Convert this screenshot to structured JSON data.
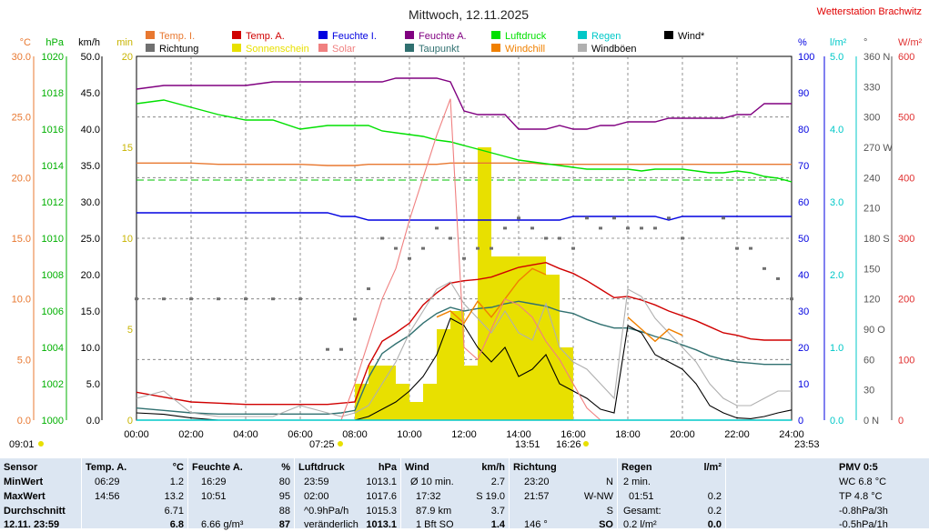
{
  "title": "Mittwoch, 12.11.2025",
  "station": "Wetterstation Brachwitz",
  "colors": {
    "temp_in": "#e87830",
    "temp_out": "#d00000",
    "hum_in": "#0000e0",
    "hum_out": "#800080",
    "pressure": "#00e000",
    "rain": "#00c8c8",
    "wind": "#000000",
    "direction": "#707070",
    "sunshine": "#e8e000",
    "solar": "#f08080",
    "dewpoint": "#307070",
    "windchill": "#f08000",
    "gusts": "#b0b0b0",
    "table_bg": "#dce6f2"
  },
  "legend": [
    {
      "label": "Temp. I.",
      "color": "#e87830"
    },
    {
      "label": "Temp. A.",
      "color": "#d00000"
    },
    {
      "label": "Feuchte I.",
      "color": "#0000e0"
    },
    {
      "label": "Feuchte A.",
      "color": "#800080"
    },
    {
      "label": "Luftdruck",
      "color": "#00e000"
    },
    {
      "label": "Regen",
      "color": "#00c8c8"
    },
    {
      "label": "Wind*",
      "color": "#000000"
    },
    {
      "label": "Richtung",
      "color": "#707070"
    },
    {
      "label": "Sonnenschein",
      "color": "#e8e000"
    },
    {
      "label": "Solar",
      "color": "#f08080"
    },
    {
      "label": "Taupunkt",
      "color": "#307070"
    },
    {
      "label": "Windchill",
      "color": "#f08000"
    },
    {
      "label": "Windböen",
      "color": "#b0b0b0"
    }
  ],
  "axes": {
    "temp": {
      "unit": "°C",
      "ticks": [
        "30.0",
        "25.0",
        "20.0",
        "15.0",
        "10.0",
        "5.0",
        "0.0"
      ],
      "color": "#e87830"
    },
    "pressure": {
      "unit": "hPa",
      "ticks": [
        "1020",
        "1018",
        "1016",
        "1014",
        "1012",
        "1010",
        "1008",
        "1006",
        "1004",
        "1002",
        "1000"
      ],
      "color": "#00b000"
    },
    "wind": {
      "unit": "km/h",
      "ticks": [
        "50.0",
        "45.0",
        "40.0",
        "35.0",
        "30.0",
        "25.0",
        "20.0",
        "15.0",
        "10.0",
        "5.0",
        "0.0"
      ],
      "color": "#000000"
    },
    "sun": {
      "unit": "min",
      "ticks": [
        "20",
        "15",
        "10",
        "5",
        "0"
      ],
      "color": "#c8b400"
    },
    "humidity": {
      "unit": "%",
      "ticks": [
        "100",
        "90",
        "80",
        "70",
        "60",
        "50",
        "40",
        "30",
        "20",
        "10",
        "0"
      ],
      "color": "#0000e0"
    },
    "rain": {
      "unit": "l/m²",
      "ticks": [
        "5.0",
        "4.0",
        "3.0",
        "2.0",
        "1.0",
        "0.0"
      ],
      "color": "#00c8c8"
    },
    "direction": {
      "unit": "°",
      "ticks": [
        "360 N",
        "330",
        "300",
        "270 W",
        "240",
        "210",
        "180 S",
        "150",
        "120",
        "90 O",
        "60",
        "30",
        "0 N"
      ],
      "color": "#555555"
    },
    "solar": {
      "unit": "W/m²",
      "ticks": [
        "600",
        "500",
        "400",
        "300",
        "200",
        "100",
        "0"
      ],
      "color": "#e03030"
    },
    "time": [
      "00:00",
      "02:00",
      "04:00",
      "06:00",
      "08:00",
      "10:00",
      "12:00",
      "14:00",
      "16:00",
      "18:00",
      "20:00",
      "22:00",
      "24:00"
    ]
  },
  "sun_times": {
    "sunrise_label": "07:25",
    "sunset_label": "16:26",
    "moonrise_label": "09:01",
    "moonset_label": "23:53",
    "solar_noon_label": "13:51"
  },
  "chart_data": {
    "type": "line",
    "x_unit": "hours",
    "x": [
      0,
      1,
      2,
      3,
      4,
      5,
      6,
      7,
      7.5,
      8,
      8.5,
      9,
      9.5,
      10,
      10.5,
      11,
      11.5,
      12,
      12.5,
      13,
      13.5,
      14,
      14.5,
      15,
      15.5,
      16,
      16.5,
      17,
      17.5,
      18,
      18.5,
      19,
      19.5,
      20,
      20.5,
      21,
      21.5,
      22,
      22.5,
      23,
      23.5,
      24
    ],
    "series": [
      {
        "name": "Temp. A.",
        "axis": "temp",
        "values": [
          2.3,
          1.9,
          1.5,
          1.4,
          1.3,
          1.3,
          1.3,
          1.3,
          1.4,
          1.5,
          4.5,
          6.5,
          7.2,
          8.0,
          9.5,
          10.5,
          11.3,
          11.5,
          11.6,
          11.8,
          12.2,
          12.6,
          12.8,
          13.0,
          12.5,
          12.1,
          11.5,
          10.8,
          10.1,
          10.2,
          9.9,
          9.5,
          9.0,
          8.6,
          8.2,
          7.7,
          7.2,
          7.0,
          6.7,
          6.6,
          6.6,
          6.6
        ]
      },
      {
        "name": "Taupunkt",
        "axis": "temp",
        "values": [
          1.0,
          0.8,
          0.6,
          0.5,
          0.5,
          0.5,
          0.5,
          0.5,
          0.6,
          0.8,
          3.5,
          5.5,
          6.3,
          7.0,
          8.0,
          8.8,
          9.3,
          9.0,
          9.2,
          9.3,
          9.6,
          9.8,
          9.6,
          9.4,
          9.0,
          8.8,
          8.3,
          7.9,
          7.6,
          7.6,
          7.3,
          6.9,
          6.6,
          6.2,
          5.8,
          5.3,
          5.0,
          4.8,
          4.7,
          4.6,
          4.6,
          4.6
        ]
      },
      {
        "name": "Temp. I.",
        "axis": "temp",
        "values": [
          21.2,
          21.2,
          21.2,
          21.1,
          21.1,
          21.1,
          21.1,
          21.0,
          21.0,
          21.0,
          21.1,
          21.1,
          21.1,
          21.1,
          21.1,
          21.1,
          21.2,
          21.2,
          21.2,
          21.2,
          21.2,
          21.2,
          21.2,
          21.1,
          21.1,
          21.1,
          21.1,
          21.1,
          21.1,
          21.1,
          21.1,
          21.1,
          21.1,
          21.1,
          21.1,
          21.1,
          21.1,
          21.1,
          21.1,
          21.1,
          21.1,
          21.1
        ]
      },
      {
        "name": "Feuchte A.",
        "axis": "humidity",
        "values": [
          91,
          92,
          92,
          92,
          92,
          93,
          93,
          93,
          93,
          93,
          93,
          93,
          94,
          94,
          94,
          94,
          93,
          85,
          84,
          84,
          84,
          80,
          80,
          80,
          81,
          80,
          80,
          81,
          81,
          82,
          82,
          82,
          83,
          83,
          83,
          83,
          83,
          84,
          84,
          87,
          87,
          87
        ]
      },
      {
        "name": "Feuchte I.",
        "axis": "humidity",
        "values": [
          57,
          57,
          57,
          57,
          57,
          57,
          57,
          57,
          56,
          56,
          55,
          55,
          55,
          55,
          55,
          55,
          55,
          55,
          55,
          55,
          55,
          55,
          55,
          55,
          55,
          56,
          56,
          56,
          56,
          56,
          56,
          56,
          55,
          56,
          56,
          56,
          56,
          56,
          56,
          56,
          56,
          56
        ]
      },
      {
        "name": "Luftdruck",
        "axis": "pressure",
        "values": [
          1017.4,
          1017.6,
          1017.2,
          1016.8,
          1016.5,
          1016.5,
          1016.0,
          1016.2,
          1016.2,
          1016.2,
          1016.2,
          1015.9,
          1015.8,
          1015.7,
          1015.6,
          1015.4,
          1015.3,
          1015.1,
          1014.9,
          1014.7,
          1014.5,
          1014.3,
          1014.2,
          1014.1,
          1014.0,
          1013.9,
          1013.8,
          1013.8,
          1013.8,
          1013.8,
          1013.7,
          1013.8,
          1013.8,
          1013.8,
          1013.7,
          1013.6,
          1013.6,
          1013.7,
          1013.6,
          1013.4,
          1013.3,
          1013.1
        ]
      },
      {
        "name": "Wind*",
        "axis": "wind",
        "values": [
          1.0,
          0.8,
          0.3,
          0.0,
          0.0,
          0.0,
          0.0,
          0.0,
          0.0,
          0.0,
          0.5,
          1.5,
          2.5,
          4.0,
          6.0,
          9.0,
          14.0,
          13.0,
          10.0,
          8.0,
          10.0,
          6.0,
          7.0,
          9.0,
          5.0,
          4.0,
          3.0,
          1.5,
          1.0,
          13.0,
          12.0,
          9.0,
          8.0,
          7.0,
          5.0,
          2.0,
          1.0,
          0.3,
          0.2,
          0.5,
          1.0,
          1.4
        ]
      },
      {
        "name": "Windböen",
        "axis": "wind",
        "values": [
          3.0,
          4.0,
          1.0,
          0.5,
          0.5,
          0.5,
          2.0,
          1.0,
          0.5,
          1.0,
          2.0,
          5.0,
          8.0,
          12.0,
          15.0,
          18.0,
          19.0,
          16.0,
          14.0,
          12.0,
          15.0,
          12.0,
          11.0,
          16.0,
          10.0,
          8.0,
          7.0,
          5.0,
          3.0,
          18.0,
          17.0,
          14.0,
          12.0,
          10.0,
          8.0,
          5.0,
          3.0,
          2.0,
          2.0,
          3.0,
          4.0,
          4.0
        ]
      },
      {
        "name": "Windchill",
        "axis": "temp",
        "values": [
          null,
          null,
          null,
          null,
          null,
          null,
          null,
          null,
          null,
          null,
          null,
          null,
          null,
          null,
          null,
          8.5,
          9.0,
          8.0,
          9.8,
          8.5,
          10.0,
          11.5,
          12.5,
          12.0,
          null,
          null,
          null,
          null,
          null,
          8.5,
          7.5,
          6.5,
          7.5,
          7.0,
          null,
          null,
          null,
          null,
          null,
          null,
          null,
          null
        ]
      },
      {
        "name": "Richtung",
        "axis": "direction",
        "values": [
          120,
          120,
          120,
          120,
          120,
          120,
          120,
          70,
          70,
          100,
          130,
          180,
          170,
          160,
          170,
          190,
          180,
          160,
          170,
          170,
          190,
          200,
          190,
          180,
          180,
          170,
          200,
          190,
          200,
          190,
          190,
          190,
          200,
          180,
          null,
          null,
          200,
          170,
          170,
          150,
          140,
          120
        ]
      },
      {
        "name": "Solar",
        "axis": "solar",
        "values": [
          0,
          0,
          0,
          0,
          0,
          0,
          0,
          0,
          0,
          60,
          130,
          200,
          250,
          330,
          400,
          470,
          530,
          120,
          100,
          150,
          200,
          190,
          170,
          130,
          100,
          60,
          20,
          0,
          0,
          0,
          0,
          0,
          0,
          0,
          0,
          0,
          0,
          0,
          0,
          0,
          0,
          0
        ]
      },
      {
        "name": "Sonnenschein",
        "axis": "sun",
        "values": [
          0,
          0,
          0,
          0,
          0,
          0,
          0,
          0,
          0,
          2,
          3,
          3,
          2,
          1,
          2,
          5,
          6,
          3,
          15,
          9,
          9,
          9,
          9,
          8,
          4,
          0,
          0,
          0,
          0,
          0,
          0,
          0,
          0,
          0,
          0,
          0,
          0,
          0,
          0,
          0,
          0,
          0
        ]
      },
      {
        "name": "Regen",
        "axis": "rain",
        "values": [
          0,
          0,
          0,
          0,
          0,
          0,
          0,
          0,
          0,
          0,
          0,
          0,
          0,
          0,
          0,
          0,
          0,
          0,
          0,
          0,
          0,
          0,
          0,
          0,
          0,
          0,
          0,
          0,
          0,
          0,
          0,
          0,
          0,
          0,
          0,
          0,
          0,
          0,
          0,
          0,
          0,
          0
        ]
      }
    ],
    "reference_lines": [
      {
        "axis": "temp",
        "value": 19.8,
        "color": "#00c000"
      }
    ],
    "xlim": [
      0,
      24
    ],
    "temp_ylim": [
      0,
      30
    ],
    "pressure_ylim": [
      1000,
      1020
    ],
    "wind_ylim": [
      0,
      50
    ],
    "sun_ylim": [
      0,
      20
    ],
    "humidity_ylim": [
      0,
      100
    ],
    "rain_ylim": [
      0,
      5
    ],
    "direction_ylim": [
      0,
      360
    ],
    "solar_ylim": [
      0,
      600
    ],
    "grid": true
  },
  "table": {
    "sensor": {
      "header": "Sensor",
      "rows": [
        "MinWert",
        "MaxWert",
        "Durchschnitt",
        "12.11. 23:59"
      ]
    },
    "temp": {
      "header": "Temp. A.",
      "unit": "°C",
      "rows": [
        [
          "06:29",
          "1.2"
        ],
        [
          "14:56",
          "13.2"
        ],
        [
          "",
          "6.71"
        ],
        [
          "",
          "6.8"
        ]
      ]
    },
    "humidity": {
      "header": "Feuchte A.",
      "unit": "%",
      "rows": [
        [
          "16:29",
          "80"
        ],
        [
          "10:51",
          "95"
        ],
        [
          "",
          "88"
        ],
        [
          "6.66 g/m³",
          "87"
        ]
      ]
    },
    "pressure": {
      "header": "Luftdruck",
      "unit": "hPa",
      "rows": [
        [
          "23:59",
          "1013.1"
        ],
        [
          "02:00",
          "1017.6"
        ],
        [
          "^0.9hPa/h",
          "1015.3"
        ],
        [
          "veränderlich",
          "1013.1"
        ]
      ]
    },
    "wind": {
      "header": "Wind",
      "unit": "km/h",
      "rows": [
        [
          "Ø 10 min.",
          "2.7"
        ],
        [
          "17:32",
          "S 19.0"
        ],
        [
          "87.9 km",
          "3.7"
        ],
        [
          "1 Bft SO",
          "1.4"
        ]
      ]
    },
    "direction": {
      "header": "Richtung",
      "rows": [
        [
          "23:20",
          "N"
        ],
        [
          "21:57",
          "W-NW"
        ],
        [
          "",
          "S"
        ],
        [
          "146 °",
          "SO"
        ]
      ]
    },
    "rain": {
      "header": "Regen",
      "unit": "l/m²",
      "rows": [
        [
          "2 min.",
          ""
        ],
        [
          "01:51",
          "0.2"
        ],
        [
          "Gesamt:",
          "0.2"
        ],
        [
          "0.2 l/m²",
          "0.0"
        ]
      ]
    },
    "pmv": {
      "header": "PMV 0:5",
      "rows": [
        "WC 6.8 °C",
        "TP 4.8 °C",
        "-0.8hPa/3h",
        "-0.5hPa/1h"
      ]
    }
  }
}
